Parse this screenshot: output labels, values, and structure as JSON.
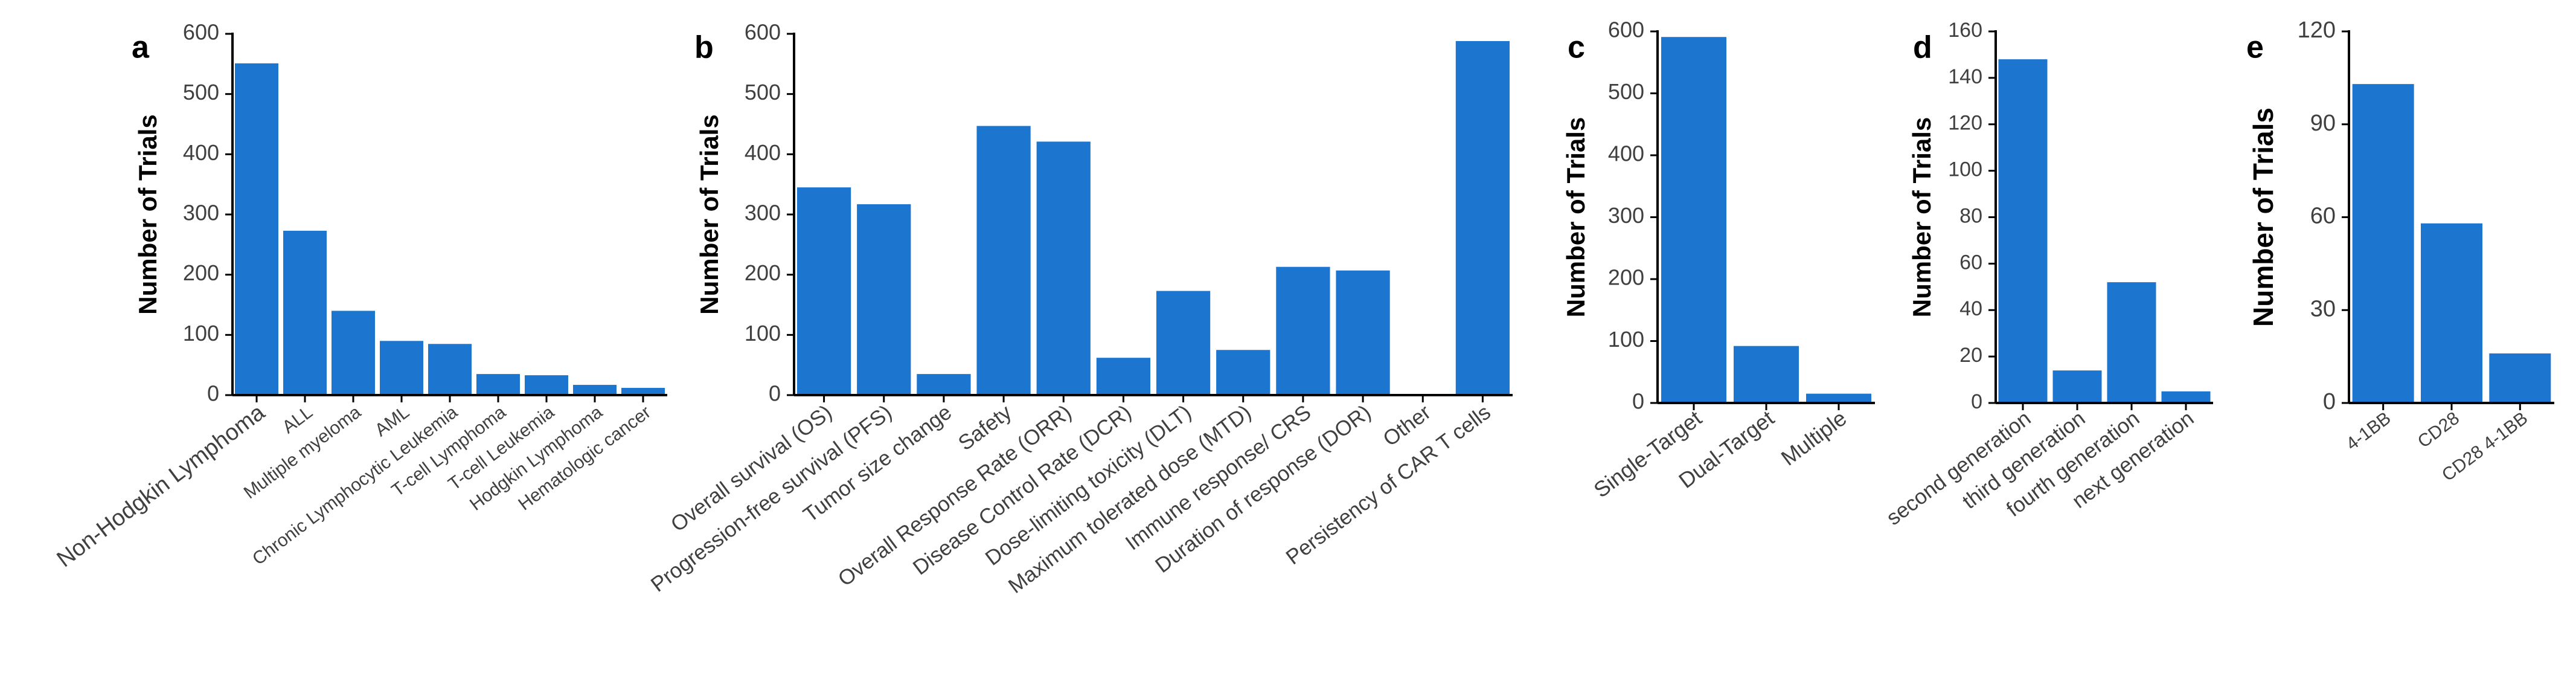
{
  "colors": {
    "bar": "#1c75cf",
    "axis": "#000000",
    "tick_text": "#404040"
  },
  "chart_data": [
    {
      "panel": "a",
      "type": "bar",
      "ylabel": "Number of Trials",
      "ylim": [
        0,
        600
      ],
      "yticks": [
        0,
        100,
        200,
        300,
        400,
        500,
        600
      ],
      "categories": [
        "Non-Hodgkin  Lymphoma",
        "ALL",
        "Multiple myeloma",
        "AML",
        "Chronic Lymphocytic Leukemia",
        "T-cell Lymphoma",
        "T-cell Leukemia",
        "Hodgkin Lymphoma",
        "Hematologic cancer"
      ],
      "values": [
        551,
        273,
        140,
        90,
        85,
        35,
        33,
        17,
        12
      ]
    },
    {
      "panel": "b",
      "type": "bar",
      "ylabel": "Number of Trials",
      "ylim": [
        0,
        600
      ],
      "yticks": [
        0,
        100,
        200,
        300,
        400,
        500,
        600
      ],
      "categories": [
        "Overall survival (OS)",
        "Progression-free survival (PFS)",
        "Tumor size change",
        "Safety",
        "Overall Response Rate (ORR)",
        "Disease Control Rate (DCR)",
        "Dose-limiting toxicity (DLT)",
        "Maximum tolerated dose (MTD)",
        "Immune response/ CRS",
        "Duration of response (DOR)",
        "Other",
        "Persistency of CAR T cells"
      ],
      "values": [
        345,
        317,
        35,
        447,
        421,
        62,
        173,
        75,
        213,
        207,
        1,
        588
      ]
    },
    {
      "panel": "c",
      "type": "bar",
      "ylabel": "Number of Trials",
      "ylim": [
        0,
        600
      ],
      "yticks": [
        0,
        100,
        200,
        300,
        400,
        500,
        600
      ],
      "categories": [
        "Single-Target",
        "Dual-Target",
        "Multiple"
      ],
      "values": [
        591,
        92,
        15
      ]
    },
    {
      "panel": "d",
      "type": "bar",
      "ylabel": "Number of Trials",
      "ylim": [
        0,
        160
      ],
      "yticks": [
        0,
        20,
        40,
        60,
        80,
        100,
        120,
        140,
        160
      ],
      "categories": [
        "second generation",
        "third generation",
        "fourth generation",
        "next generation"
      ],
      "values": [
        148,
        14,
        52,
        5
      ]
    },
    {
      "panel": "e",
      "type": "bar",
      "ylabel": "Number of Trials",
      "ylim": [
        0,
        120
      ],
      "yticks": [
        0,
        30,
        60,
        90,
        120
      ],
      "categories": [
        "4-1BB",
        "CD28",
        "CD28 4-1BB"
      ],
      "values": [
        103,
        58,
        16
      ]
    }
  ]
}
